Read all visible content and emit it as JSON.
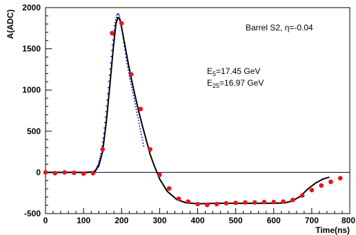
{
  "chart_data": {
    "type": "scatter",
    "title": "",
    "xlabel": "Time(ns)",
    "ylabel": "A(ADC)",
    "xlim": [
      0,
      800
    ],
    "ylim": [
      -500,
      2000
    ],
    "x_ticks": [
      0,
      100,
      200,
      300,
      400,
      500,
      600,
      700,
      800
    ],
    "y_ticks": [
      -500,
      0,
      500,
      1000,
      1500,
      2000
    ],
    "x_tick_labels": [
      "0",
      "100",
      "200",
      "300",
      "400",
      "500",
      "600",
      "700",
      "800"
    ],
    "y_tick_labels": [
      "-500",
      "0",
      "500",
      "1000",
      "1500",
      "2000"
    ],
    "grid": false,
    "zero_line": true,
    "annotations": {
      "detector_label": "Barrel S2, η=-0.04",
      "e5_prefix": "E",
      "e5_sub": "5",
      "e5_value": "=17.45 GeV",
      "e25_prefix": "E",
      "e25_sub": "25",
      "e25_value": "=16.97 GeV"
    },
    "series": [
      {
        "style": "red-markers",
        "color": "#e8141a",
        "x": [
          0,
          25,
          50,
          75,
          100,
          125,
          150,
          175,
          200,
          225,
          250,
          275,
          300,
          325,
          350,
          375,
          400,
          425,
          450,
          475,
          500,
          525,
          550,
          575,
          600,
          625,
          650,
          675,
          700,
          725,
          750,
          775
        ],
        "y": [
          0,
          -10,
          0,
          -5,
          -15,
          -10,
          280,
          1690,
          1810,
          1190,
          770,
          280,
          -30,
          -195,
          -320,
          -355,
          -385,
          -395,
          -385,
          -375,
          -370,
          -365,
          -365,
          -360,
          -360,
          -355,
          -335,
          -280,
          -215,
          -160,
          -115,
          -70
        ]
      },
      {
        "style": "blue-dense-dots",
        "color": "#1616d8",
        "x": [
          0,
          110,
          125,
          132,
          138,
          145,
          152,
          160,
          168,
          175,
          182,
          188,
          192,
          196,
          200,
          206,
          212,
          220,
          228,
          236,
          244,
          252,
          258
        ],
        "y": [
          0,
          0,
          5,
          30,
          90,
          210,
          430,
          780,
          1180,
          1530,
          1800,
          1920,
          1925,
          1870,
          1760,
          1560,
          1380,
          1180,
          1000,
          820,
          640,
          460,
          320
        ]
      },
      {
        "style": "black-line",
        "color": "#000000",
        "x": [
          0,
          110,
          130,
          140,
          150,
          160,
          170,
          178,
          185,
          190,
          195,
          200,
          208,
          216,
          225,
          235,
          245,
          255,
          265,
          275,
          285,
          300,
          320,
          345,
          370,
          400,
          450,
          500,
          550,
          600,
          630,
          650,
          670,
          690,
          710,
          730,
          745
        ],
        "y": [
          0,
          0,
          10,
          80,
          250,
          620,
          1100,
          1500,
          1800,
          1880,
          1860,
          1760,
          1560,
          1360,
          1150,
          940,
          740,
          560,
          390,
          220,
          90,
          -80,
          -230,
          -330,
          -370,
          -380,
          -375,
          -375,
          -375,
          -375,
          -370,
          -345,
          -290,
          -200,
          -130,
          -80,
          -60
        ]
      }
    ]
  }
}
